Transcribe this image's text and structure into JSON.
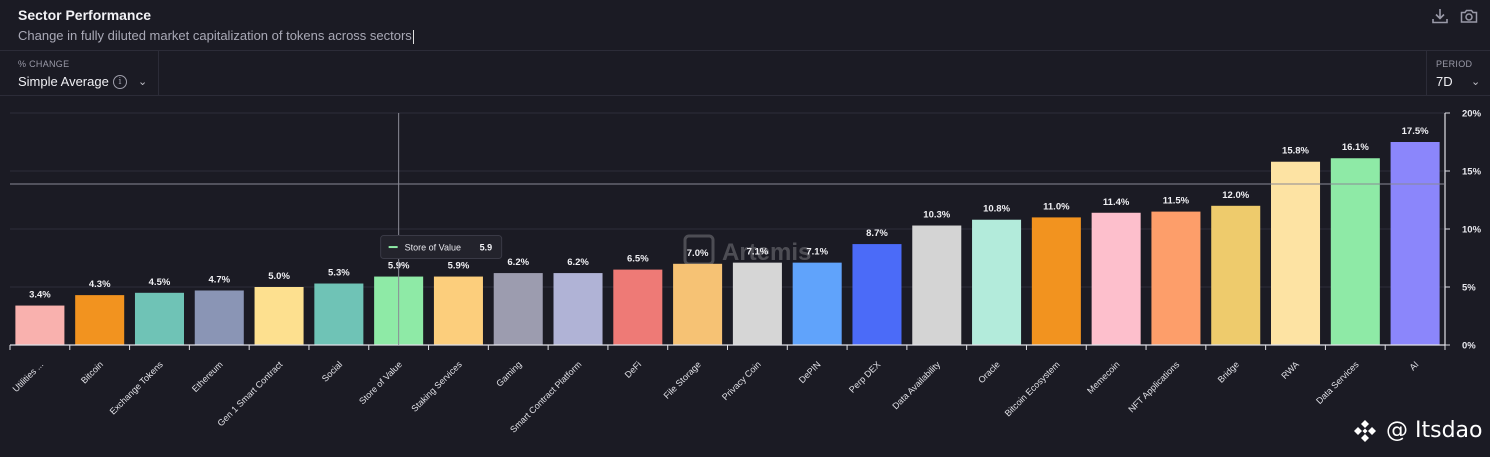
{
  "header": {
    "title": "Sector Performance",
    "subtitle": "Change in fully diluted market capitalization of tokens across sectors",
    "icons": [
      "download-icon",
      "camera-icon"
    ]
  },
  "controls": {
    "metric_label": "% CHANGE",
    "metric_value": "Simple Average",
    "period_label": "PERIOD",
    "period_value": "7D"
  },
  "tooltip": {
    "category": "Store of Value",
    "value": "5.9",
    "color": "#8eeaa6"
  },
  "watermark": {
    "chart_brand": "Artemis",
    "handle": "@ Itsdao"
  },
  "colors": {
    "background": "#1b1b24",
    "grid": "#2e2e3a",
    "text": "#e8e8ee"
  },
  "chart_data": {
    "type": "bar",
    "title": "Sector Performance",
    "subtitle": "Change in fully diluted market capitalization of tokens across sectors",
    "categories": [
      "Utilities ...",
      "Bitcoin",
      "Exchange Tokens",
      "Ethereum",
      "Gen 1 Smart Contract",
      "Social",
      "Store of Value",
      "Staking Services",
      "Gaming",
      "Smart Contract Platform",
      "DeFi",
      "File Storage",
      "Privacy Coin",
      "DePIN",
      "Perp DEX",
      "Data Availability",
      "Oracle",
      "Bitcoin Ecosystem",
      "Memecoin",
      "NFT Applications",
      "Bridge",
      "RWA",
      "Data Services",
      "AI"
    ],
    "values": [
      3.4,
      4.3,
      4.5,
      4.7,
      5.0,
      5.3,
      5.9,
      5.9,
      6.2,
      6.2,
      6.5,
      7.0,
      7.1,
      7.1,
      8.7,
      10.3,
      10.8,
      11.0,
      11.4,
      11.5,
      12.0,
      15.8,
      16.1,
      17.5
    ],
    "labels": [
      "3.4%",
      "4.3%",
      "4.5%",
      "4.7%",
      "5.0%",
      "5.3%",
      "5.9%",
      "5.9%",
      "6.2%",
      "6.2%",
      "6.5%",
      "7.0%",
      "7.1%",
      "7.1%",
      "8.7%",
      "10.3%",
      "10.8%",
      "11.0%",
      "11.4%",
      "11.5%",
      "12.0%",
      "15.8%",
      "16.1%",
      "17.5%"
    ],
    "colors": [
      "#f9b1ae",
      "#f2931f",
      "#6fc3b6",
      "#8a95b5",
      "#fde08f",
      "#6fc3b6",
      "#8eeaa6",
      "#fcce7c",
      "#9c9caf",
      "#b0b3d6",
      "#ee7a76",
      "#f6c274",
      "#d6d6d6",
      "#60a3fb",
      "#4b6bf8",
      "#d4d4d4",
      "#b3ebdb",
      "#f2931f",
      "#fdbfcc",
      "#fd9e6a",
      "#eecb6c",
      "#fde3a3",
      "#8eeaa6",
      "#8b86fb"
    ],
    "y_ticks": [
      "0%",
      "5%",
      "10%",
      "15%",
      "20%"
    ],
    "ylim": [
      0,
      20
    ],
    "y_axis_side": "right",
    "grid": true
  }
}
